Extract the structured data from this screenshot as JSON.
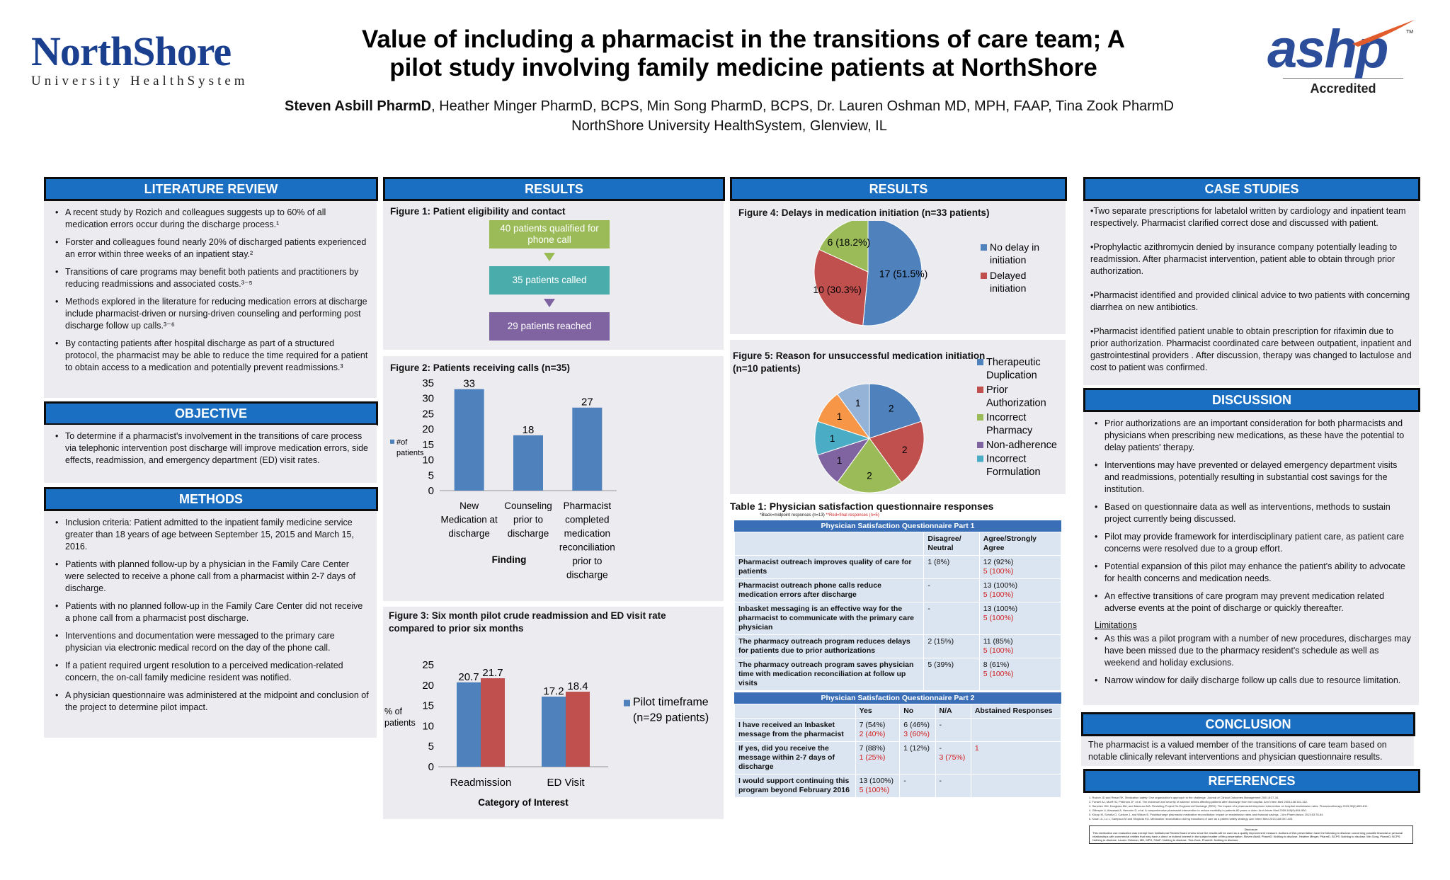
{
  "header": {
    "logo_main": "NorthShore",
    "logo_sub": "University HealthSystem",
    "title_line1": "Value of including a pharmacist in the transitions of care team; A",
    "title_line2": "pilot study involving family medicine patients at NorthShore",
    "author_lead": "Steven Asbill PharmD",
    "author_rest": ", Heather Minger PharmD, BCPS, Min Song PharmD, BCPS, Dr. Lauren Oshman MD, MPH, FAAP, Tina Zook PharmD",
    "affiliation": "NorthShore University HealthSystem, Glenview, IL",
    "ashp_logo": "ashp",
    "ashp_tm": "TM",
    "ashp_accredited": "Accredited"
  },
  "literature": {
    "heading": "LITERATURE REVIEW",
    "items": [
      "A recent study by Rozich and colleagues suggests up to 60% of all medication errors occur during the discharge process.¹",
      "Forster and colleagues found nearly 20% of discharged patients experienced an error within three weeks of an inpatient stay.²",
      "Transitions of care programs may benefit both patients and practitioners by reducing readmissions and associated costs.³⁻⁵",
      "Methods explored in the literature for reducing medication errors at discharge include pharmacist-driven or nursing-driven counseling and performing post discharge follow up calls.³⁻⁶",
      "By contacting patients after hospital discharge as part of a structured protocol, the pharmacist may be able to reduce the time required for a patient to obtain access to a medication and potentially prevent readmissions.³"
    ]
  },
  "objective": {
    "heading": "OBJECTIVE",
    "items": [
      "To determine if a pharmacist's involvement in the transitions of care process via telephonic intervention post discharge will improve medication errors, side effects, readmission, and emergency department (ED) visit rates."
    ]
  },
  "methods": {
    "heading": "METHODS",
    "items": [
      "Inclusion criteria: Patient admitted to the inpatient family medicine service greater than 18 years of age between September 15, 2015 and March 15, 2016.",
      "Patients with planned follow-up by a physician in the Family Care Center were selected to receive a phone call from a pharmacist within 2-7 days of discharge.",
      "Patients with no planned follow-up in the Family Care Center did not receive a phone call from a pharmacist post discharge.",
      "Interventions and documentation were messaged to the primary care physician via electronic medical record on the day of the phone call.",
      "If a patient required urgent resolution to a perceived medication-related concern, the on-call family medicine resident was notified.",
      "A physician questionnaire was administered at the midpoint and conclusion of the project to determine pilot impact."
    ]
  },
  "results1": {
    "heading": "RESULTS",
    "fig1_title": "Figure 1: Patient eligibility and contact",
    "flow": [
      "40 patients qualified for phone call",
      "35 patients called",
      "29 patients reached"
    ],
    "fig2_title": "Figure 2:  Patients receiving calls (n=35)",
    "fig3_title_1": "Figure 3: Six month pilot crude readmission and ED visit rate",
    "fig3_title_2": "compared to prior six months"
  },
  "results2": {
    "heading": "RESULTS",
    "fig4_title": "Figure 4: Delays in medication initiation (n=33 patients)",
    "fig5_title_1": "Figure 5: Reason for unsuccessful medication initiation",
    "fig5_title_2": "(n=10 patients)",
    "table_title": "Table 1: Physician satisfaction questionnaire responses",
    "table_note_black": "*Black=midpoint responses (n=13)",
    "table_note_red": " **Red=final responses (n=5)",
    "part1_title": "Physician Satisfaction Questionnaire  Part 1",
    "part1_cols": [
      "Disagree/ Neutral",
      "Agree/Strongly Agree"
    ],
    "part1_rows": [
      {
        "q": "Pharmacist outreach improves quality of care for patients",
        "d": "1 (8%)",
        "d2": "",
        "a": "12 (92%)",
        "a2": "5 (100%)"
      },
      {
        "q": "Pharmacist outreach phone calls reduce medication errors after discharge",
        "d": "-",
        "d2": "",
        "a": "13 (100%)",
        "a2": "5 (100%)"
      },
      {
        "q": "Inbasket messaging is an effective way for the pharmacist to communicate with the primary care physician",
        "d": "-",
        "d2": "",
        "a": "13 (100%)",
        "a2": "5 (100%)"
      },
      {
        "q": "The pharmacy outreach program reduces delays for patients due to prior authorizations",
        "d": "2 (15%)",
        "d2": "",
        "a": "11 (85%)",
        "a2": "5 (100%)"
      },
      {
        "q": "The pharmacy outreach program saves physician time with medication reconciliation at follow up visits",
        "d": "5 (39%)",
        "d2": "",
        "a": "8 (61%)",
        "a2": "5 (100%)"
      }
    ],
    "part2_title": "Physician Satisfaction Questionnaire Part 2",
    "part2_cols": [
      "Yes",
      "No",
      "N/A",
      "Abstained Responses"
    ],
    "part2_rows": [
      {
        "q": "I have received an Inbasket message from the pharmacist",
        "y": "7 (54%)",
        "y2": "2 (40%)",
        "n": "6 (46%)",
        "n2": "3 (60%)",
        "na": "-",
        "na2": "",
        "ab": "",
        "ab2": ""
      },
      {
        "q": "If yes, did you receive the message within 2-7 days of discharge",
        "y": "7 (88%)",
        "y2": "1 (25%)",
        "n": "1 (12%)",
        "n2": "",
        "na": "-",
        "na2": "3 (75%)",
        "ab": "",
        "ab2": "1"
      },
      {
        "q": "I would support continuing this program beyond February 2016",
        "y": "13 (100%)",
        "y2": "5 (100%)",
        "n": "-",
        "n2": "",
        "na": "-",
        "na2": "",
        "ab": "",
        "ab2": ""
      }
    ]
  },
  "case_studies": {
    "heading": "CASE STUDIES",
    "items": [
      "•Two separate prescriptions for labetalol written by cardiology and inpatient team respectively. Pharmacist clarified correct dose and discussed with patient.",
      "•Prophylactic azithromycin denied by insurance company potentially leading to readmission. After pharmacist intervention, patient able to obtain through prior authorization.",
      "•Pharmacist identified and provided clinical advice to two patients with concerning diarrhea on new antibiotics.",
      "•Pharmacist identified patient unable to obtain prescription for rifaximin due to prior authorization.  Pharmacist coordinated care between outpatient, inpatient and gastrointestinal providers . After discussion, therapy was changed to lactulose and cost to patient was confirmed."
    ]
  },
  "discussion": {
    "heading": "DISCUSSION",
    "items": [
      "Prior authorizations are an important consideration for  both pharmacists and physicians when prescribing new medications, as these have the potential to delay patients' therapy.",
      "Interventions may have prevented or delayed emergency department visits and readmissions, potentially resulting in substantial cost savings for the institution.",
      "Based on questionnaire data as well as interventions, methods to sustain project currently being discussed.",
      "Pilot may provide framework for interdisciplinary patient care, as patient care concerns were resolved due to a group effort.",
      "Potential expansion of this pilot may enhance the patient's ability to advocate for health concerns and medication needs.",
      "An effective transitions of care program may prevent medication related adverse events at the point of discharge or quickly thereafter."
    ],
    "limitations_label": "Limitations",
    "limitations": [
      "As this was a pilot program with a number of new procedures, discharges may have been missed due to the pharmacy resident's schedule as well as weekend and holiday exclusions.",
      "Narrow window for daily discharge follow up calls due to resource limitation."
    ]
  },
  "conclusion": {
    "heading": "CONCLUSION",
    "text": "The pharmacist is a valued member of the transitions of care team based on notable clinically relevant interventions and physician questionnaire results."
  },
  "references": {
    "heading": "REFERENCES",
    "items": [
      "1.   Rozich JD and Resar RK. Medication safety: One organization's approach to the challenge. Journal of Clinical Outcomes Management 2001;8:27-34.",
      "2.   Forster AJ, Murff HJ, Peterson JF, et al. The incidence and severity of adverse events affecting patients after discharge from the hospital. Ann Intern Med 2003;138:161-162.",
      "3.   Sanchez GM, Douglass MA, and Mancuso MA. Revisiting Project Re-Engineered Discharge (RED): The impact of a pharmacist telephone intervention on hospital readmission rates. Pharmacotherapy 2015;35(9):805-812.",
      "4.   Gillespie U, Alassaad A, Henrohn D, et al. A comprehensive pharmacist intervention to reduce morbidity in patients 80 years or older. Arch Intern Med 2009;169(9):894-900.",
      "5.   Kilcup M, Schultz D, Carlson J, and Wilson B. Postdischarge pharmacist medication reconciliation: impact on readmission rates and financial savings. J Am Pharm Assoc 2013;53:78-84.",
      "6.   Kwan JL, Lo L, Sampson M and Shojania KG. Medication reconciliation during transitions of care as a patient safety strategy. Ann Intern Med 2013;158:397-403."
    ],
    "disclosure_title": "Disclosure",
    "disclosure": "This medication use evaluation was exempt from Institutional Review Board review since the results will be used as a quality improvement measure. Authors of this presentation have the following to disclose concerning possible financial or personal relationships with commercial entities that may have a direct or indirect interest in the subject matter of this presentation: Steven Asbill, PharmD: Nothing to disclose. Heather Minger, PharmD, BCPS: Nothing to disclose. Min Song, PharmD, BCPS: Nothing to disclose. Lauren Oshman, MD, MPH, FAAP: Nothing to disclose. Tina Zook, PharmD: Nothing to disclose."
  },
  "chart_data": [
    {
      "type": "bar",
      "title": "Figure 2:  Patients receiving calls (n=35)",
      "categories": [
        "New Medication at discharge",
        "Counseling prior to discharge",
        "Pharmacist completed medication reconciliation prior to discharge"
      ],
      "category_lines": [
        [
          "New",
          "Medication at",
          "discharge"
        ],
        [
          "Counseling",
          "prior to",
          "discharge"
        ],
        [
          "Pharmacist",
          "completed",
          "medication",
          "reconciliation",
          "prior to",
          "discharge"
        ]
      ],
      "series": [
        {
          "name": "#of patients",
          "values": [
            33,
            18,
            27
          ],
          "color": "#4f81bd"
        }
      ],
      "legend_lines": [
        "#of",
        "patients"
      ],
      "xlabel": "Finding",
      "ylabel": "",
      "ylim": [
        0,
        35
      ],
      "yticks": [
        0,
        5,
        10,
        15,
        20,
        25,
        30,
        35
      ],
      "grid": false,
      "legend": "left"
    },
    {
      "type": "bar",
      "title": "Figure 3: Six month pilot crude readmission and ED visit rate compared to prior six months",
      "categories": [
        "Readmission",
        "ED Visit"
      ],
      "series": [
        {
          "name": "Pilot timeframe (n=29 patients)",
          "legend_lines": [
            "Pilot timeframe",
            "(n=29 patients)"
          ],
          "values": [
            20.7,
            17.2
          ],
          "color": "#4f81bd"
        },
        {
          "name": "",
          "values": [
            21.7,
            18.4
          ],
          "color": "#c0504d"
        }
      ],
      "ylabel_lines": [
        "% of",
        "patients"
      ],
      "xlabel": "Category of Interest",
      "ylim": [
        0,
        25
      ],
      "yticks": [
        0,
        5,
        10,
        15,
        20,
        25
      ],
      "grid": false,
      "legend": "right"
    },
    {
      "type": "pie",
      "title": "Figure 4: Delays in medication initiation (n=33 patients)",
      "slices": [
        {
          "label": "No delay in initiation",
          "legend_lines": [
            "No delay in",
            "initiation"
          ],
          "value": 17,
          "text": "17 (51.5%)",
          "color": "#4f81bd"
        },
        {
          "label": "Delayed initiation",
          "legend_lines": [
            "Delayed",
            "initiation"
          ],
          "value": 10,
          "text": "10 (30.3%)",
          "color": "#c0504d"
        },
        {
          "label": "",
          "value": 6,
          "text": "6 (18.2%)",
          "color": "#9bbb59"
        }
      ],
      "legend": "right"
    },
    {
      "type": "pie",
      "title": "Figure 5: Reason for unsuccessful medication initiation (n=10 patients)",
      "slices": [
        {
          "label": "Therapeutic Duplication",
          "legend_lines": [
            "Therapeutic",
            "Duplication"
          ],
          "value": 2,
          "text": "2",
          "color": "#4f81bd"
        },
        {
          "label": "Prior Authorization",
          "legend_lines": [
            "Prior",
            "Authorization"
          ],
          "value": 2,
          "text": "2",
          "color": "#c0504d"
        },
        {
          "label": "Incorrect Pharmacy",
          "legend_lines": [
            "Incorrect",
            "Pharmacy"
          ],
          "value": 2,
          "text": "2",
          "color": "#9bbb59"
        },
        {
          "label": "Non-adherence",
          "legend_lines": [
            "Non-adherence"
          ],
          "value": 1,
          "text": "1",
          "color": "#8064a2"
        },
        {
          "label": "Incorrect Formulation",
          "legend_lines": [
            "Incorrect",
            "Formulation"
          ],
          "value": 1,
          "text": "1",
          "color": "#4bacc6"
        },
        {
          "label": "",
          "value": 1,
          "text": "1",
          "color": "#f79646"
        },
        {
          "label": "",
          "value": 1,
          "text": "1",
          "color": "#95b3d7"
        }
      ],
      "legend": "right"
    }
  ]
}
